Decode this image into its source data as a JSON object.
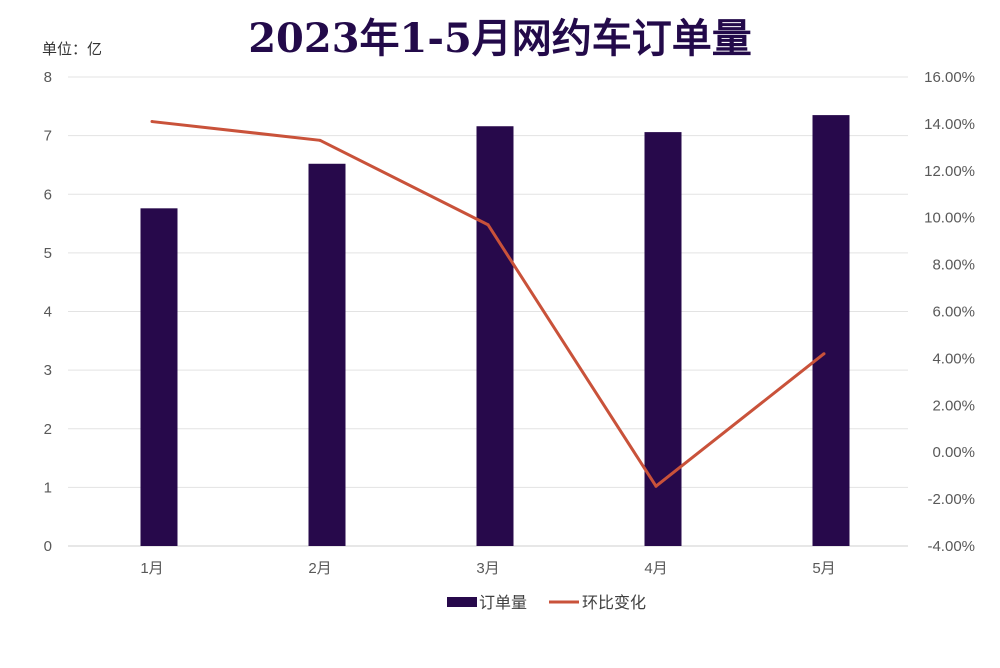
{
  "chart_data": {
    "type": "bar",
    "title": "2023年1-5月网约车订单量",
    "unit_label": "单位：亿",
    "categories": [
      "1月",
      "2月",
      "3月",
      "4月",
      "5月"
    ],
    "y_left": {
      "min": 0,
      "max": 8,
      "ticks": [
        "0",
        "1",
        "2",
        "3",
        "4",
        "5",
        "6",
        "7",
        "8"
      ]
    },
    "y_right": {
      "min": -4,
      "max": 16,
      "ticks": [
        "-4.00%",
        "-2.00%",
        "0.00%",
        "2.00%",
        "4.00%",
        "6.00%",
        "8.00%",
        "10.00%",
        "12.00%",
        "14.00%",
        "16.00%"
      ]
    },
    "series": [
      {
        "name": "订单量",
        "type": "bar",
        "axis": "left",
        "color": "#27094b",
        "values": [
          5.76,
          6.52,
          7.16,
          7.06,
          7.35
        ]
      },
      {
        "name": "环比变化",
        "type": "line",
        "axis": "right",
        "color": "#c9523a",
        "values": [
          14.1,
          13.3,
          9.7,
          -1.45,
          4.2
        ]
      }
    ],
    "grid": true,
    "legend_position": "bottom"
  }
}
